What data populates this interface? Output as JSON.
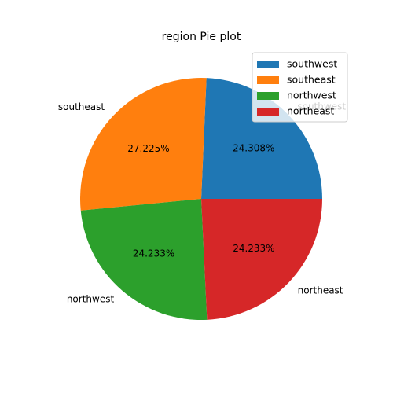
{
  "chart_data": {
    "type": "pie",
    "title": "region Pie plot",
    "slices": [
      {
        "label": "southwest",
        "pct_label": "24.308%",
        "value": 24.308,
        "color": "#1f77b4"
      },
      {
        "label": "southeast",
        "pct_label": "27.225%",
        "value": 27.225,
        "color": "#ff7f0e"
      },
      {
        "label": "northwest",
        "pct_label": "24.233%",
        "value": 24.233,
        "color": "#2ca02c"
      },
      {
        "label": "northeast",
        "pct_label": "24.233%",
        "value": 24.233,
        "color": "#d62728"
      }
    ],
    "start_angle_deg": 0,
    "direction": "counterclockwise",
    "legend": {
      "placement": "top-right",
      "entries": [
        "southwest",
        "southeast",
        "northwest",
        "northeast"
      ]
    }
  }
}
